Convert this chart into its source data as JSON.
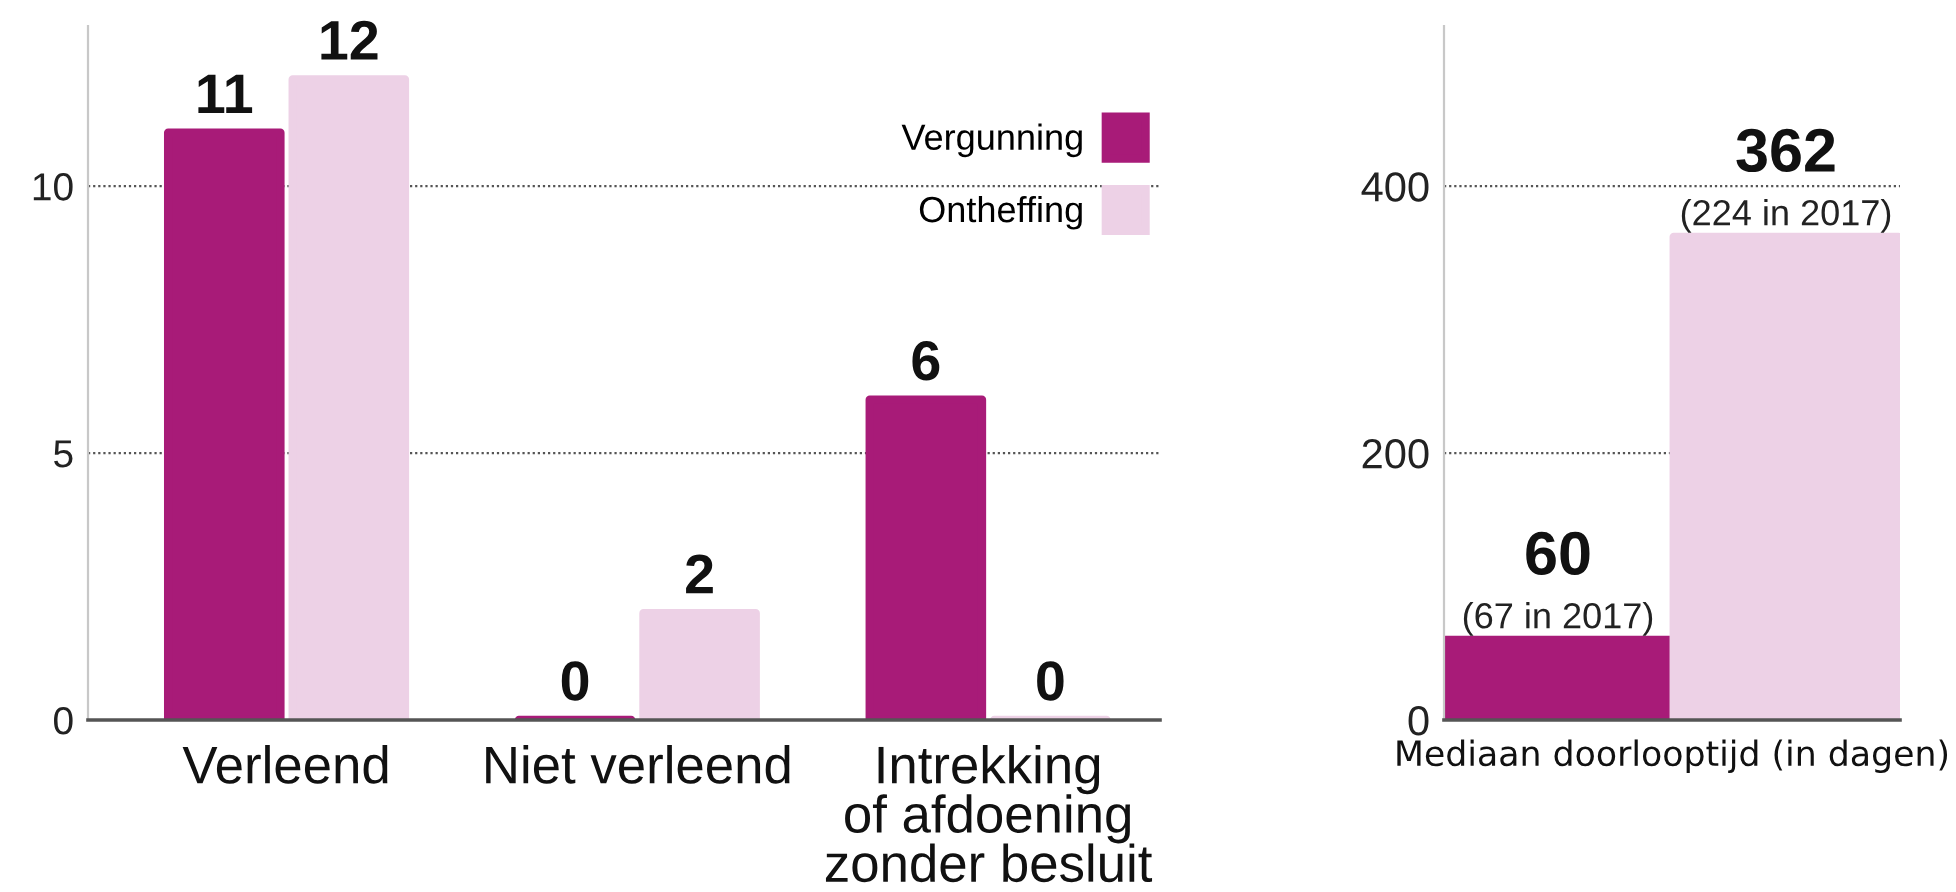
{
  "chart_data": [
    {
      "type": "bar",
      "categories": [
        "Verleend",
        "Niet verleend",
        "Intrekking\nof afdoening\nzonder besluit"
      ],
      "series": [
        {
          "name": "Vergunning",
          "color": "#a81b78",
          "values": [
            11,
            0,
            6
          ]
        },
        {
          "name": "Ontheffing",
          "color": "#edd1e6",
          "values": [
            12,
            2,
            0
          ]
        }
      ],
      "ylim": [
        0,
        13
      ],
      "yticks": [
        0,
        5,
        10
      ],
      "grid": "y",
      "legend": "top right",
      "data_labels": true
    },
    {
      "type": "bar",
      "xlabel": "Mediaan doorlooptijd (in dagen)",
      "categories": [
        null,
        null
      ],
      "values": [
        60,
        362
      ],
      "colors": [
        "#a81b78",
        "#edd1e6"
      ],
      "ylim": [
        0,
        520
      ],
      "yticks": [
        0,
        200,
        400
      ],
      "grid": "y",
      "data_labels": true,
      "annotations": [
        {
          "text": "(67 in 2017)",
          "y": 60
        },
        {
          "text": "(224 in 2017)",
          "y": 362
        }
      ]
    }
  ]
}
